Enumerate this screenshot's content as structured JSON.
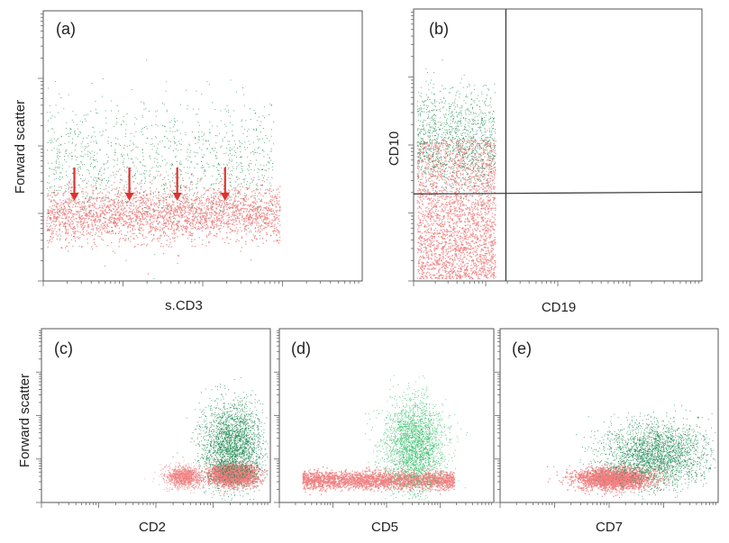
{
  "colors": {
    "pink": "#f07f80",
    "green": "#1f8a52",
    "lightgreen": "#3cc06e",
    "arrow": "#e0322c",
    "frame": "#555555"
  },
  "chart_data": [
    {
      "id": "a",
      "panel_label": "(a)",
      "type": "scatter",
      "xlabel": "s.CD3",
      "ylabel": "Forward scatter",
      "x_scale": "log",
      "y_scale": "log",
      "grid": false,
      "populations": [
        {
          "color": "pink",
          "x_range": [
            0.0,
            1.0
          ],
          "y_center": 0.25,
          "y_spread": 0.05,
          "density": "high"
        },
        {
          "color": "green",
          "x_range": [
            0.0,
            0.97
          ],
          "y_center": 0.42,
          "y_spread": 0.12,
          "density": "medium"
        }
      ],
      "annotations": [
        {
          "type": "arrow",
          "color": "arrow",
          "x": 0.13
        },
        {
          "type": "arrow",
          "color": "arrow",
          "x": 0.36
        },
        {
          "type": "arrow",
          "color": "arrow",
          "x": 0.56
        },
        {
          "type": "arrow",
          "color": "arrow",
          "x": 0.76
        }
      ]
    },
    {
      "id": "b",
      "panel_label": "(b)",
      "type": "scatter",
      "xlabel": "CD19",
      "ylabel": "CD10",
      "x_scale": "log",
      "y_scale": "log",
      "grid": false,
      "quadrant_gates": {
        "x": 0.32,
        "y": 0.32
      },
      "populations": [
        {
          "color": "pink",
          "x_range": [
            0.0,
            0.28
          ],
          "y_range": [
            0.0,
            0.52
          ],
          "density": "high"
        },
        {
          "color": "green",
          "x_range": [
            0.0,
            0.28
          ],
          "y_range": [
            0.32,
            0.75
          ],
          "density": "medium"
        }
      ]
    },
    {
      "id": "c",
      "panel_label": "(c)",
      "type": "scatter",
      "xlabel": "CD2",
      "ylabel": "Forward scatter",
      "x_scale": "log",
      "y_scale": "log",
      "grid": false,
      "populations": [
        {
          "color": "pink",
          "x_center": 0.62,
          "y_center": 0.15,
          "x_spread": 0.04,
          "y_spread": 0.03,
          "density": "medium"
        },
        {
          "color": "pink",
          "x_center": 0.84,
          "y_center": 0.16,
          "x_spread": 0.05,
          "y_spread": 0.03,
          "density": "high"
        },
        {
          "color": "green",
          "x_center": 0.84,
          "y_center": 0.33,
          "x_spread": 0.07,
          "y_spread": 0.12,
          "density": "high"
        }
      ]
    },
    {
      "id": "d",
      "panel_label": "(d)",
      "type": "scatter",
      "xlabel": "CD5",
      "ylabel": "",
      "x_scale": "log",
      "y_scale": "log",
      "grid": false,
      "populations": [
        {
          "color": "pink",
          "x_range": [
            0.1,
            0.82
          ],
          "y_center": 0.13,
          "y_spread": 0.025,
          "density": "high"
        },
        {
          "color": "lightgreen",
          "x_center": 0.63,
          "y_center": 0.33,
          "x_spread": 0.07,
          "y_spread": 0.13,
          "density": "high"
        }
      ]
    },
    {
      "id": "e",
      "panel_label": "(e)",
      "type": "scatter",
      "xlabel": "CD7",
      "ylabel": "",
      "x_scale": "log",
      "y_scale": "log",
      "grid": false,
      "populations": [
        {
          "color": "pink",
          "x_center": 0.52,
          "y_center": 0.14,
          "x_spread": 0.09,
          "y_spread": 0.03,
          "density": "high"
        },
        {
          "color": "green",
          "x_center": 0.72,
          "y_center": 0.28,
          "x_spread": 0.12,
          "y_spread": 0.09,
          "density": "high"
        }
      ]
    }
  ]
}
